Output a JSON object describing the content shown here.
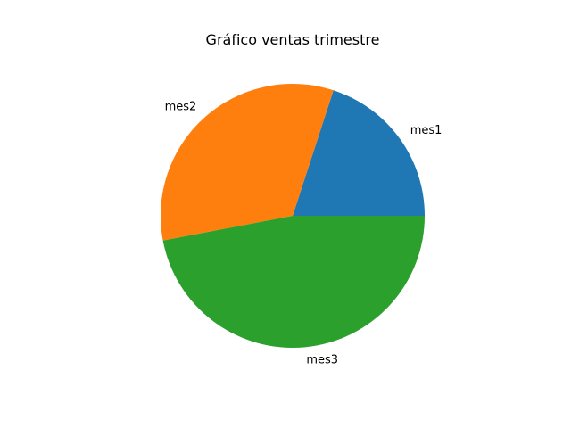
{
  "chart_data": {
    "type": "pie",
    "title": "Gráfico ventas trimestre",
    "categories": [
      "mes1",
      "mes2",
      "mes3"
    ],
    "values": [
      20,
      33,
      47
    ],
    "colors": [
      "#1f77b4",
      "#ff7f0e",
      "#2ca02c"
    ]
  }
}
